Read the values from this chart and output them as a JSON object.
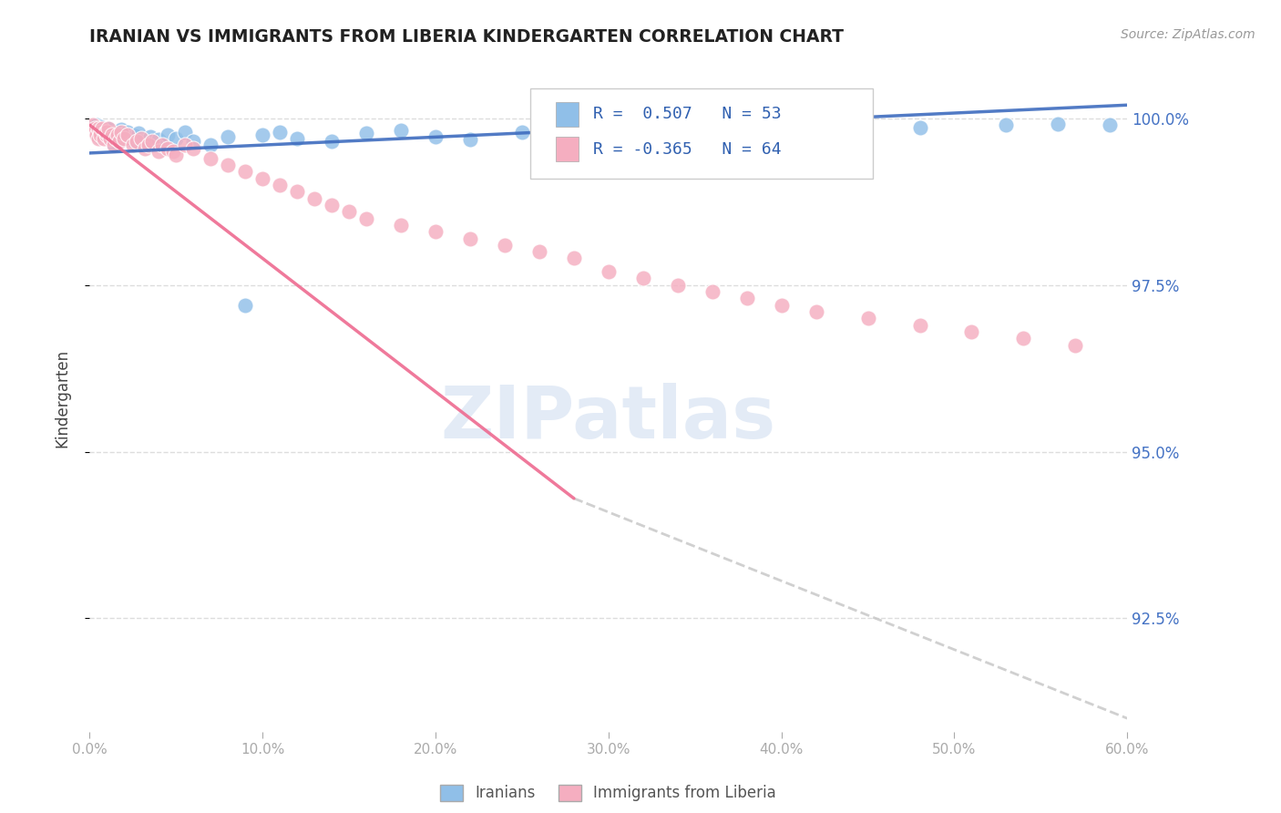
{
  "title": "IRANIAN VS IMMIGRANTS FROM LIBERIA KINDERGARTEN CORRELATION CHART",
  "source": "Source: ZipAtlas.com",
  "ylabel": "Kindergarten",
  "yaxis_labels": [
    "100.0%",
    "97.5%",
    "95.0%",
    "92.5%"
  ],
  "yaxis_values": [
    1.0,
    0.975,
    0.95,
    0.925
  ],
  "xmin": 0.0,
  "xmax": 0.6,
  "ymin": 0.908,
  "ymax": 1.008,
  "blue_color": "#90bfe8",
  "pink_color": "#f5aec0",
  "blue_line_color": "#3f6dbf",
  "pink_line_color": "#ee6b90",
  "dash_color": "#c8c8c8",
  "watermark_color": "#c8d8ee",
  "watermark_text": "ZIPatlas",
  "legend1_label": "R =  0.507   N = 53",
  "legend2_label": "R = -0.365   N = 64",
  "bottom_legend1": "Iranians",
  "bottom_legend2": "Immigrants from Liberia",
  "iranians_x": [
    0.002,
    0.003,
    0.004,
    0.004,
    0.005,
    0.005,
    0.006,
    0.007,
    0.008,
    0.009,
    0.01,
    0.011,
    0.012,
    0.013,
    0.014,
    0.015,
    0.016,
    0.017,
    0.018,
    0.019,
    0.02,
    0.022,
    0.024,
    0.026,
    0.028,
    0.03,
    0.035,
    0.04,
    0.045,
    0.05,
    0.055,
    0.06,
    0.07,
    0.08,
    0.09,
    0.1,
    0.11,
    0.12,
    0.14,
    0.16,
    0.18,
    0.2,
    0.22,
    0.25,
    0.28,
    0.32,
    0.36,
    0.4,
    0.44,
    0.48,
    0.53,
    0.56,
    0.59
  ],
  "iranians_y": [
    0.9988,
    0.9982,
    0.999,
    0.9975,
    0.9985,
    0.9972,
    0.9988,
    0.998,
    0.9984,
    0.9976,
    0.9983,
    0.9985,
    0.997,
    0.9978,
    0.996,
    0.9974,
    0.9978,
    0.9968,
    0.9984,
    0.9972,
    0.9976,
    0.998,
    0.9968,
    0.9974,
    0.9978,
    0.9965,
    0.9972,
    0.9968,
    0.9975,
    0.997,
    0.998,
    0.9965,
    0.996,
    0.9972,
    0.972,
    0.9975,
    0.998,
    0.997,
    0.9965,
    0.9978,
    0.9982,
    0.9972,
    0.9968,
    0.998,
    0.9985,
    0.9988,
    0.9984,
    0.999,
    0.9988,
    0.9986,
    0.999,
    0.9992,
    0.999
  ],
  "liberia_x": [
    0.002,
    0.003,
    0.003,
    0.004,
    0.005,
    0.005,
    0.006,
    0.006,
    0.007,
    0.008,
    0.009,
    0.01,
    0.01,
    0.011,
    0.012,
    0.013,
    0.014,
    0.015,
    0.016,
    0.017,
    0.018,
    0.02,
    0.022,
    0.025,
    0.027,
    0.03,
    0.032,
    0.034,
    0.036,
    0.04,
    0.042,
    0.045,
    0.048,
    0.05,
    0.055,
    0.06,
    0.07,
    0.08,
    0.09,
    0.1,
    0.11,
    0.12,
    0.13,
    0.14,
    0.15,
    0.16,
    0.18,
    0.2,
    0.22,
    0.24,
    0.26,
    0.28,
    0.3,
    0.32,
    0.34,
    0.36,
    0.38,
    0.4,
    0.42,
    0.45,
    0.48,
    0.51,
    0.54,
    0.57
  ],
  "liberia_y": [
    0.999,
    0.9985,
    0.998,
    0.9975,
    0.9985,
    0.997,
    0.998,
    0.9975,
    0.9985,
    0.997,
    0.998,
    0.9975,
    0.998,
    0.9985,
    0.997,
    0.9975,
    0.996,
    0.997,
    0.9975,
    0.9965,
    0.998,
    0.997,
    0.9975,
    0.996,
    0.9965,
    0.997,
    0.9955,
    0.996,
    0.9965,
    0.995,
    0.996,
    0.9955,
    0.995,
    0.9945,
    0.996,
    0.9955,
    0.994,
    0.993,
    0.992,
    0.991,
    0.99,
    0.989,
    0.988,
    0.987,
    0.986,
    0.985,
    0.984,
    0.983,
    0.982,
    0.981,
    0.98,
    0.979,
    0.977,
    0.976,
    0.975,
    0.974,
    0.973,
    0.972,
    0.971,
    0.97,
    0.969,
    0.968,
    0.967,
    0.966
  ]
}
